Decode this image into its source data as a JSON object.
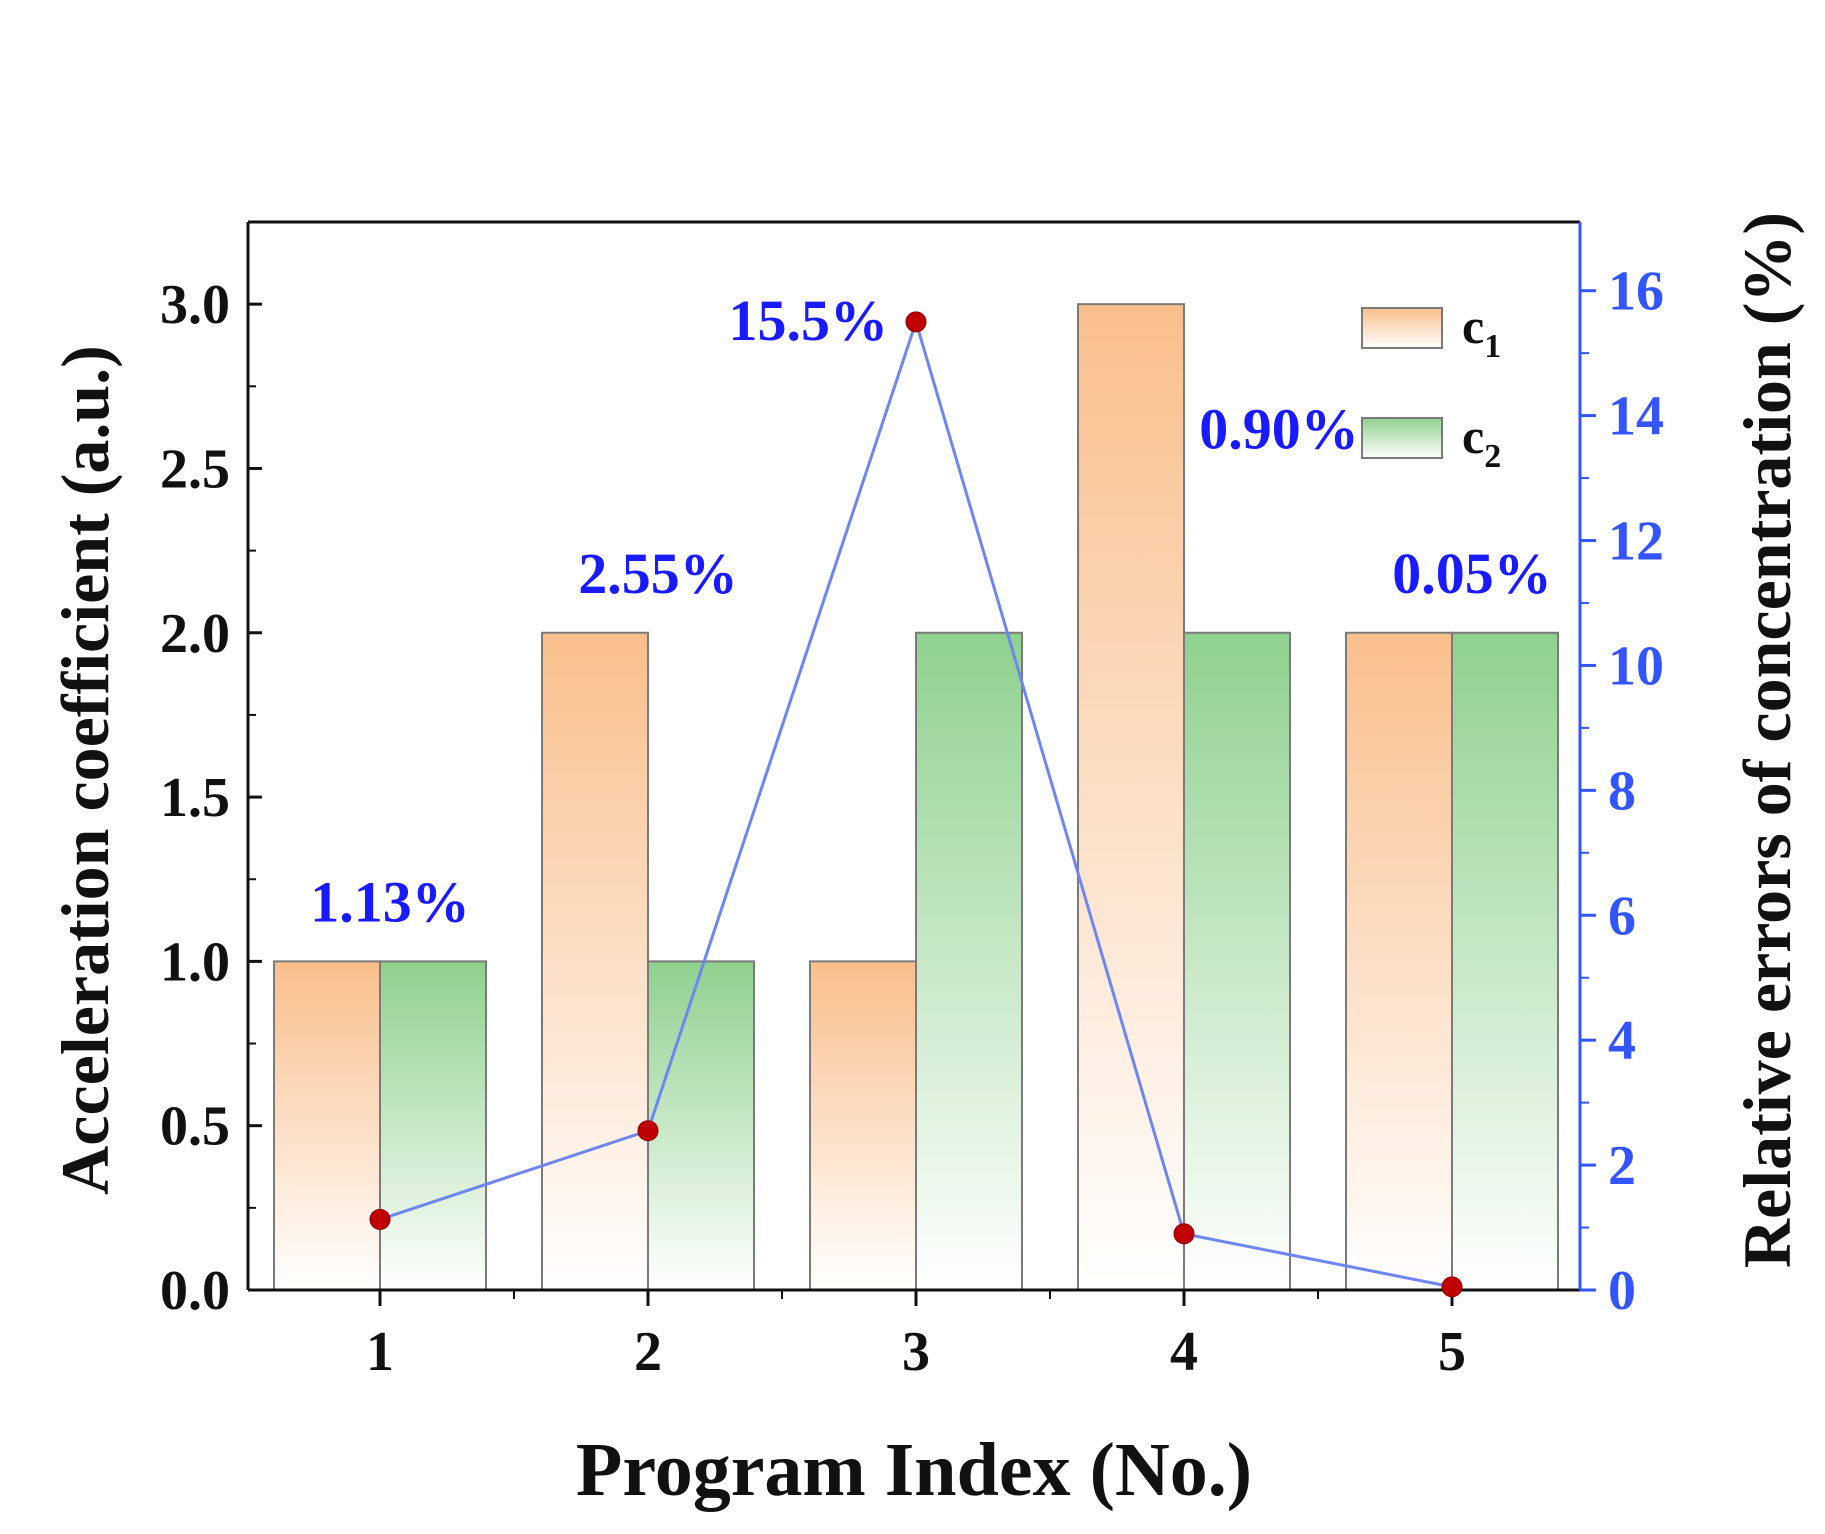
{
  "chart_data": {
    "type": "bar",
    "categories": [
      "1",
      "2",
      "3",
      "4",
      "5"
    ],
    "series": [
      {
        "name": "c",
        "subscript": "1",
        "axis": "left",
        "values": [
          1,
          2,
          1,
          3,
          2
        ]
      },
      {
        "name": "c",
        "subscript": "2",
        "axis": "left",
        "values": [
          1,
          1,
          2,
          2,
          2
        ]
      }
    ],
    "line_series": {
      "name": "Relative errors of concentration",
      "axis": "right",
      "type": "line",
      "values": [
        1.13,
        2.55,
        15.5,
        0.9,
        0.05
      ],
      "labels": [
        "1.13%",
        "2.55%",
        "15.5%",
        "0.90%",
        "0.05%"
      ]
    },
    "xlabel": "Program Index (No.)",
    "ylabel": "Acceleration coefficient (a.u.)",
    "y2label": "Relative errors of concentration (%)",
    "ylim": [
      0,
      3.25
    ],
    "y2lim": [
      0,
      17.1
    ],
    "yticks": [
      "0.0",
      "0.5",
      "1.0",
      "1.5",
      "2.0",
      "2.5",
      "3.0"
    ],
    "y2ticks": [
      "0",
      "2",
      "4",
      "6",
      "8",
      "10",
      "12",
      "14",
      "16"
    ],
    "legend_position": "top-right",
    "colors": {
      "c1_top": "#f9bf8c",
      "c1_bottom": "#ffffff",
      "c2_top": "#8fd18f",
      "c2_bottom": "#ffffff",
      "bar_edge": "#7a7a7a",
      "line": "#6d86f2",
      "marker": "#c00000",
      "label_blue": "#1a1aff",
      "right_axis": "#3355ff",
      "axis": "#111111"
    }
  }
}
